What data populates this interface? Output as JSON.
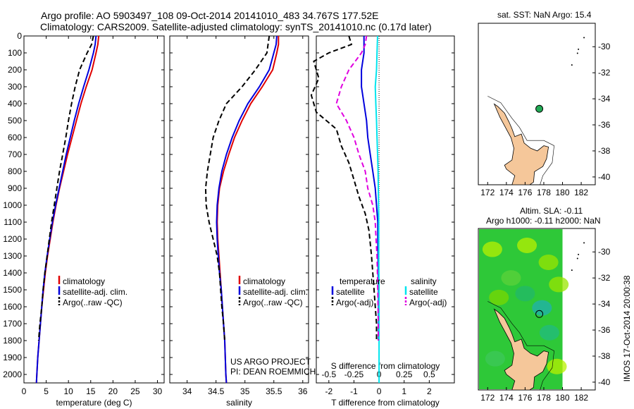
{
  "header": {
    "title_line1": "Argo profile: AO 5903497_108 09-Oct-2014 20141010_483 34.767S 177.52E",
    "title_line2": "Climatology: CARS2009. Satellite-adjusted climatology: synTS_20141010.nc (0.17d later)"
  },
  "colors": {
    "climatology": "#e00000",
    "satellite": "#0000dd",
    "argo": "#000000",
    "salinity_satellite": "#00e5ee",
    "salinity_argo": "#e000e0",
    "land": "#f5c79a",
    "marker_green": "#22aa55",
    "sla_field": "#2ec838"
  },
  "chart_data": [
    {
      "name": "temperature-panel",
      "type": "line",
      "xlabel": "temperature (deg C)",
      "ylabel": "",
      "xlim": [
        0,
        31.5
      ],
      "ylim": [
        2050,
        0
      ],
      "xticks": [
        0,
        5,
        10,
        15,
        20,
        25,
        30
      ],
      "yticks": [
        0,
        100,
        200,
        300,
        400,
        500,
        600,
        700,
        800,
        900,
        1000,
        1100,
        1200,
        1300,
        1400,
        1500,
        1600,
        1700,
        1800,
        1900,
        2000
      ],
      "legend": [
        "climatology",
        "satellite-adj. clim.",
        "Argo(..raw -QC)"
      ],
      "series": [
        {
          "name": "climatology",
          "style": "solid",
          "color": "#e00000",
          "points": [
            [
              16.8,
              0
            ],
            [
              16.6,
              50
            ],
            [
              16.2,
              100
            ],
            [
              15.3,
              200
            ],
            [
              14.0,
              300
            ],
            [
              12.8,
              400
            ],
            [
              11.8,
              500
            ],
            [
              10.8,
              600
            ],
            [
              9.8,
              700
            ],
            [
              8.9,
              800
            ],
            [
              8.0,
              900
            ],
            [
              7.2,
              1000
            ],
            [
              6.5,
              1100
            ],
            [
              5.9,
              1200
            ],
            [
              5.3,
              1300
            ],
            [
              4.8,
              1400
            ],
            [
              4.4,
              1500
            ],
            [
              4.0,
              1600
            ],
            [
              3.7,
              1700
            ],
            [
              3.4,
              1800
            ],
            [
              3.1,
              1900
            ],
            [
              2.9,
              2000
            ],
            [
              2.8,
              2050
            ]
          ]
        },
        {
          "name": "satellite-adj. clim.",
          "style": "solid",
          "color": "#0000dd",
          "points": [
            [
              16.2,
              0
            ],
            [
              16.0,
              50
            ],
            [
              15.6,
              100
            ],
            [
              14.6,
              200
            ],
            [
              13.4,
              300
            ],
            [
              12.3,
              400
            ],
            [
              11.3,
              500
            ],
            [
              10.4,
              600
            ],
            [
              9.5,
              700
            ],
            [
              8.7,
              800
            ],
            [
              7.9,
              900
            ],
            [
              7.1,
              1000
            ],
            [
              6.4,
              1100
            ],
            [
              5.8,
              1200
            ],
            [
              5.2,
              1300
            ],
            [
              4.7,
              1400
            ],
            [
              4.3,
              1500
            ],
            [
              4.0,
              1600
            ],
            [
              3.7,
              1700
            ],
            [
              3.4,
              1800
            ],
            [
              3.1,
              1900
            ],
            [
              2.9,
              2000
            ],
            [
              2.8,
              2050
            ]
          ]
        },
        {
          "name": "Argo(..raw -QC)",
          "style": "dashed",
          "color": "#000000",
          "points": [
            [
              15.6,
              0
            ],
            [
              15.2,
              50
            ],
            [
              14.2,
              100
            ],
            [
              12.5,
              200
            ],
            [
              11.5,
              300
            ],
            [
              10.7,
              400
            ],
            [
              10.0,
              500
            ],
            [
              9.4,
              600
            ],
            [
              8.7,
              700
            ],
            [
              8.0,
              800
            ],
            [
              7.4,
              900
            ],
            [
              6.8,
              1000
            ],
            [
              6.2,
              1100
            ],
            [
              5.7,
              1200
            ],
            [
              5.2,
              1300
            ],
            [
              4.7,
              1400
            ],
            [
              4.3,
              1500
            ],
            [
              4.0,
              1600
            ],
            [
              3.6,
              1700
            ],
            [
              3.3,
              1800
            ]
          ]
        }
      ]
    },
    {
      "name": "salinity-panel",
      "type": "line",
      "xlabel": "salinity",
      "ylabel": "",
      "xlim": [
        33.7,
        36.1
      ],
      "ylim": [
        2050,
        0
      ],
      "xticks": [
        34,
        34.5,
        35,
        35.5,
        36
      ],
      "legend": [
        "climatology",
        "satellite-adj. clim.",
        "Argo(..raw -QC)"
      ],
      "annotation": [
        "US ARGO PROJECT",
        "PI: DEAN ROEMMICH"
      ],
      "series": [
        {
          "name": "climatology",
          "style": "solid",
          "color": "#e00000",
          "points": [
            [
              35.58,
              0
            ],
            [
              35.58,
              50
            ],
            [
              35.55,
              100
            ],
            [
              35.48,
              200
            ],
            [
              35.3,
              300
            ],
            [
              35.1,
              400
            ],
            [
              34.95,
              500
            ],
            [
              34.82,
              600
            ],
            [
              34.72,
              700
            ],
            [
              34.63,
              800
            ],
            [
              34.56,
              900
            ],
            [
              34.53,
              1000
            ],
            [
              34.52,
              1100
            ],
            [
              34.53,
              1200
            ],
            [
              34.55,
              1300
            ],
            [
              34.57,
              1400
            ],
            [
              34.59,
              1500
            ],
            [
              34.61,
              1600
            ],
            [
              34.63,
              1700
            ],
            [
              34.65,
              1800
            ],
            [
              34.66,
              1900
            ],
            [
              34.67,
              2000
            ],
            [
              34.68,
              2050
            ]
          ]
        },
        {
          "name": "satellite-adj. clim.",
          "style": "solid",
          "color": "#0000dd",
          "points": [
            [
              35.55,
              0
            ],
            [
              35.54,
              50
            ],
            [
              35.5,
              100
            ],
            [
              35.42,
              200
            ],
            [
              35.25,
              300
            ],
            [
              35.05,
              400
            ],
            [
              34.9,
              500
            ],
            [
              34.78,
              600
            ],
            [
              34.68,
              700
            ],
            [
              34.6,
              800
            ],
            [
              34.55,
              900
            ],
            [
              34.52,
              1000
            ],
            [
              34.51,
              1100
            ],
            [
              34.52,
              1200
            ],
            [
              34.54,
              1300
            ],
            [
              34.56,
              1400
            ],
            [
              34.59,
              1500
            ],
            [
              34.61,
              1600
            ],
            [
              34.63,
              1700
            ],
            [
              34.65,
              1800
            ],
            [
              34.66,
              1900
            ],
            [
              34.67,
              2000
            ],
            [
              34.68,
              2050
            ]
          ]
        },
        {
          "name": "Argo(..raw -QC)",
          "style": "dashed",
          "color": "#000000",
          "points": [
            [
              35.42,
              0
            ],
            [
              35.4,
              50
            ],
            [
              35.38,
              100
            ],
            [
              35.18,
              200
            ],
            [
              34.95,
              300
            ],
            [
              34.68,
              400
            ],
            [
              34.55,
              500
            ],
            [
              34.45,
              600
            ],
            [
              34.4,
              700
            ],
            [
              34.35,
              800
            ],
            [
              34.32,
              900
            ],
            [
              34.33,
              1000
            ],
            [
              34.38,
              1100
            ],
            [
              34.45,
              1200
            ],
            [
              34.52,
              1300
            ],
            [
              34.56,
              1400
            ],
            [
              34.58,
              1500
            ],
            [
              34.6,
              1600
            ],
            [
              34.63,
              1700
            ],
            [
              34.65,
              1800
            ]
          ]
        }
      ]
    },
    {
      "name": "difference-panel",
      "type": "line",
      "xlabel": "T difference from climatology",
      "top_xlabel": "S difference from climatology",
      "ylabel": "",
      "xlim": [
        -2.5,
        3.0
      ],
      "ylim": [
        2050,
        0
      ],
      "xticks_T": [
        -2,
        -1,
        0,
        1,
        2
      ],
      "xticks_S_labels": [
        "-0.5",
        "-0.25",
        "0",
        "0.25",
        "0.5"
      ],
      "legend_temperature": [
        "temperature",
        "satellite",
        "Argo(-adj)"
      ],
      "legend_salinity": [
        "salinity",
        "satellite",
        "Argo(-adj)"
      ],
      "series": [
        {
          "name": "temperature satellite",
          "style": "solid",
          "color": "#0000dd",
          "points": [
            [
              -0.6,
              0
            ],
            [
              -0.6,
              50
            ],
            [
              -0.6,
              100
            ],
            [
              -0.7,
              200
            ],
            [
              -0.7,
              300
            ],
            [
              -0.6,
              400
            ],
            [
              -0.5,
              500
            ],
            [
              -0.45,
              600
            ],
            [
              -0.35,
              700
            ],
            [
              -0.25,
              800
            ],
            [
              -0.15,
              900
            ],
            [
              -0.1,
              1000
            ],
            [
              -0.05,
              1100
            ],
            [
              -0.05,
              1200
            ],
            [
              -0.04,
              1300
            ],
            [
              -0.03,
              1400
            ],
            [
              -0.02,
              1500
            ],
            [
              -0.02,
              1600
            ],
            [
              -0.02,
              1700
            ],
            [
              -0.02,
              1800
            ]
          ]
        },
        {
          "name": "temperature Argo(-adj)",
          "style": "dashed",
          "color": "#000000",
          "points": [
            [
              -1.2,
              0
            ],
            [
              -1.1,
              50
            ],
            [
              -2.0,
              100
            ],
            [
              -2.6,
              150
            ],
            [
              -2.4,
              250
            ],
            [
              -2.7,
              350
            ],
            [
              -2.5,
              450
            ],
            [
              -1.7,
              550
            ],
            [
              -1.5,
              650
            ],
            [
              -1.2,
              750
            ],
            [
              -1.0,
              850
            ],
            [
              -0.8,
              950
            ],
            [
              -0.55,
              1050
            ],
            [
              -0.4,
              1150
            ],
            [
              -0.3,
              1300
            ],
            [
              -0.25,
              1400
            ],
            [
              -0.2,
              1500
            ],
            [
              -0.15,
              1600
            ],
            [
              -0.1,
              1700
            ],
            [
              -0.1,
              1800
            ]
          ]
        },
        {
          "name": "salinity satellite",
          "style": "solid",
          "color": "#00e5ee",
          "points": [
            [
              -0.06,
              0
            ],
            [
              -0.08,
              100
            ],
            [
              -0.1,
              200
            ],
            [
              -0.15,
              300
            ],
            [
              -0.13,
              400
            ],
            [
              -0.1,
              500
            ],
            [
              -0.08,
              600
            ],
            [
              -0.06,
              700
            ],
            [
              -0.04,
              800
            ],
            [
              -0.03,
              900
            ],
            [
              -0.02,
              1000
            ],
            [
              -0.01,
              1100
            ],
            [
              -0.01,
              1300
            ],
            [
              0.0,
              1500
            ],
            [
              0.0,
              1700
            ],
            [
              0.0,
              1900
            ],
            [
              0.0,
              2050
            ]
          ]
        },
        {
          "name": "salinity Argo(-adj)",
          "style": "dashed",
          "color": "#e000e0",
          "points": [
            [
              -0.5,
              0
            ],
            [
              -0.55,
              50
            ],
            [
              -0.7,
              100
            ],
            [
              -1.2,
              200
            ],
            [
              -1.5,
              300
            ],
            [
              -1.7,
              400
            ],
            [
              -1.3,
              500
            ],
            [
              -1.0,
              600
            ],
            [
              -0.8,
              700
            ],
            [
              -0.55,
              800
            ],
            [
              -0.45,
              900
            ],
            [
              -0.25,
              1000
            ],
            [
              -0.15,
              1100
            ],
            [
              -0.12,
              1200
            ],
            [
              -0.08,
              1300
            ],
            [
              -0.05,
              1500
            ],
            [
              -0.03,
              1700
            ],
            [
              -0.03,
              1800
            ]
          ]
        }
      ]
    }
  ],
  "map_top": {
    "title": "sat. SST: NaN Argo: 15.4",
    "xticks": [
      "172",
      "174",
      "176",
      "178",
      "180",
      "182"
    ],
    "yticks": [
      "-30",
      "-32",
      "-34",
      "-36",
      "-38",
      "-40"
    ],
    "lon_range": [
      171,
      183.5
    ],
    "lat_range": [
      -40.6,
      -28.2
    ],
    "marker": {
      "lon": 177.52,
      "lat": -34.767
    }
  },
  "map_bottom": {
    "title_line1": "Altim. SLA: -0.11",
    "title_line2": "Argo h1000: -0.11 h2000: NaN",
    "xticks": [
      "172",
      "174",
      "176",
      "178",
      "180",
      "182"
    ],
    "yticks": [
      "-30",
      "-32",
      "-34",
      "-36",
      "-38",
      "-40"
    ],
    "marker": {
      "lon": 177.52,
      "lat": -34.767
    },
    "credit": "IMOS 17-Oct-2014 20:00:38"
  }
}
